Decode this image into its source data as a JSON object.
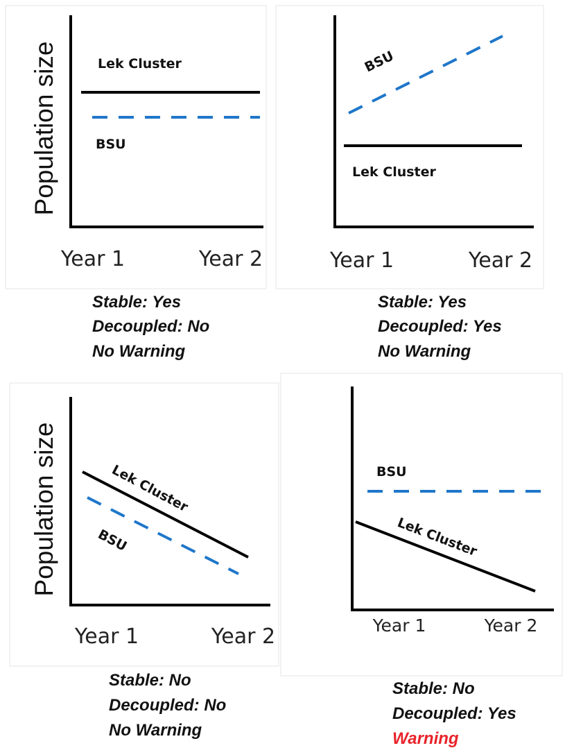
{
  "colors": {
    "lek": "#000000",
    "bsu": "#1f77c9",
    "warning": "#e8232a"
  },
  "panels": [
    {
      "ylabel": "Population size",
      "xticks": [
        "Year 1",
        "Year 2"
      ],
      "labels": {
        "lek": "Lek Cluster",
        "bsu": "BSU"
      },
      "caption": [
        "Stable: Yes",
        "Decoupled: No",
        "No Warning"
      ]
    },
    {
      "ylabel": "",
      "xticks": [
        "Year 1",
        "Year 2"
      ],
      "labels": {
        "lek": "Lek Cluster",
        "bsu": "BSU"
      },
      "caption": [
        "Stable: Yes",
        "Decoupled: Yes",
        "No Warning"
      ]
    },
    {
      "ylabel": "Population size",
      "xticks": [
        "Year 1",
        "Year 2"
      ],
      "labels": {
        "lek": "Lek Cluster",
        "bsu": "BSU"
      },
      "caption": [
        "Stable: No",
        "Decoupled: No",
        "No Warning"
      ]
    },
    {
      "ylabel": "",
      "xticks": [
        "Year 1",
        "Year 2"
      ],
      "labels": {
        "lek": "Lek Cluster",
        "bsu": "BSU"
      },
      "caption": [
        "Stable: No",
        "Decoupled: Yes",
        "Warning"
      ]
    }
  ]
}
